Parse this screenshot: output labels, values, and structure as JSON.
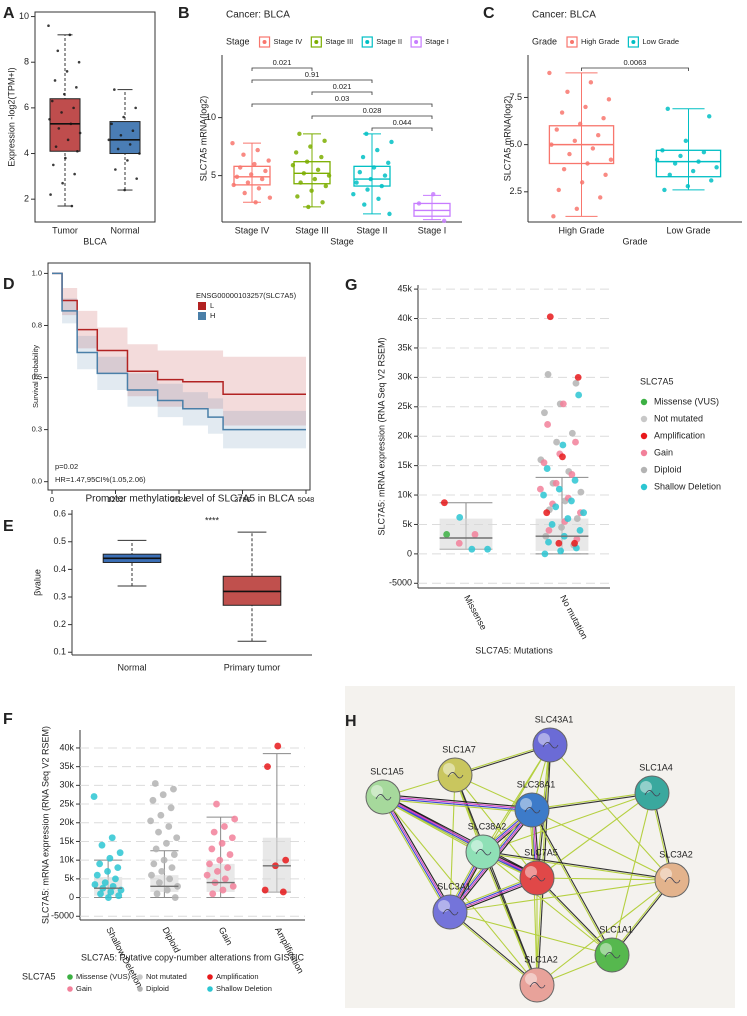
{
  "chart_data": [
    {
      "label": "A",
      "type": "box",
      "y_label": "Expression -log2(TPM+l)",
      "x_label": "BLCA",
      "categories": [
        "Tumor",
        "Normal"
      ],
      "boxes": [
        {
          "min": 1.7,
          "q1": 4.1,
          "median": 5.3,
          "q3": 6.4,
          "max": 9.2
        },
        {
          "min": 2.4,
          "q1": 4.0,
          "median": 4.6,
          "q3": 5.4,
          "max": 6.8
        }
      ],
      "colors": [
        "#bf4d4d",
        "#4a7db5"
      ],
      "point_color": "#1a1a1a",
      "box_style": "filled",
      "points": [
        [
          {
            "values": [
              9.6,
              9.2,
              8.5,
              8.0,
              7.6,
              7.2,
              6.9,
              6.6,
              6.3,
              6.0,
              5.8,
              5.5,
              5.3,
              5.1,
              4.9,
              4.6,
              4.3,
              4.1,
              3.8,
              3.5,
              3.1,
              2.7,
              2.2,
              1.7
            ]
          }
        ],
        [
          {
            "values": [
              6.8,
              6.0,
              5.6,
              5.3,
              5.0,
              4.8,
              4.6,
              4.4,
              4.2,
              4.0,
              3.7,
              3.3,
              2.9,
              2.4
            ]
          }
        ]
      ],
      "ylim": [
        1.0,
        10.2
      ],
      "yticks": [
        2,
        4,
        6,
        8,
        10
      ]
    },
    {
      "label": "B",
      "type": "box",
      "title": "Cancer: BLCA",
      "legend_title": "Stage",
      "y_label": "SLC7A5 mRNA(log2)",
      "x_label": "Stage",
      "categories": [
        "Stage IV",
        "Stage III",
        "Stage II",
        "Stage I"
      ],
      "boxes": [
        {
          "min": 2.7,
          "q1": 4.2,
          "median": 4.9,
          "q3": 5.8,
          "max": 7.8
        },
        {
          "min": 2.3,
          "q1": 4.3,
          "median": 5.2,
          "q3": 6.2,
          "max": 8.6
        },
        {
          "min": 1.7,
          "q1": 4.1,
          "median": 4.7,
          "q3": 5.8,
          "max": 8.6
        },
        {
          "min": 1.2,
          "q1": 1.5,
          "median": 2.0,
          "q3": 2.6,
          "max": 3.3
        }
      ],
      "colors": [
        "#F8766D",
        "#7CAE00",
        "#00BFC4",
        "#C77CFF"
      ],
      "box_style": "outline",
      "points": [
        [
          {
            "values": [
              7.8,
              7.2,
              6.8,
              6.3,
              6.0,
              5.7,
              5.4,
              5.1,
              4.9,
              4.7,
              4.4,
              4.2,
              3.9,
              3.5,
              3.1,
              2.7
            ]
          }
        ],
        [
          {
            "values": [
              8.6,
              8.0,
              7.5,
              7.0,
              6.6,
              6.2,
              5.9,
              5.5,
              5.2,
              5.0,
              4.7,
              4.4,
              4.1,
              3.7,
              3.2,
              2.7,
              2.3
            ]
          }
        ],
        [
          {
            "values": [
              8.6,
              7.9,
              7.2,
              6.6,
              6.1,
              5.7,
              5.3,
              5.0,
              4.7,
              4.4,
              4.1,
              3.8,
              3.4,
              3.0,
              2.5,
              1.7
            ]
          }
        ],
        [
          {
            "values": [
              3.4,
              2.6,
              1.1
            ]
          }
        ]
      ],
      "comparisons": [
        {
          "p": "0.021",
          "groups": [
            "Stage IV",
            "Stage III"
          ]
        },
        {
          "p": "0.91",
          "groups": [
            "Stage IV",
            "Stage II"
          ]
        },
        {
          "p": "0.021",
          "groups": [
            "Stage III",
            "Stage II"
          ]
        },
        {
          "p": "0.03",
          "groups": [
            "Stage IV",
            "Stage I"
          ]
        },
        {
          "p": "0.028",
          "groups": [
            "Stage III",
            "Stage I"
          ]
        },
        {
          "p": "0.044",
          "groups": [
            "Stage II",
            "Stage I"
          ]
        }
      ],
      "ylim": [
        1.0,
        15.4
      ],
      "yticks": [
        5,
        10
      ]
    },
    {
      "label": "C",
      "type": "box",
      "title": "Cancer: BLCA",
      "legend_title": "Grade",
      "y_label": "SLC7A5 mRNA(log2)",
      "x_label": "Grade",
      "categories": [
        "High Grade",
        "Low Grade"
      ],
      "boxes": [
        {
          "min": 1.2,
          "q1": 4.0,
          "median": 5.0,
          "q3": 6.0,
          "max": 8.8
        },
        {
          "min": 2.6,
          "q1": 3.3,
          "median": 4.1,
          "q3": 4.7,
          "max": 6.9
        }
      ],
      "colors": [
        "#F8766D",
        "#00BFC4"
      ],
      "box_style": "outline",
      "points": [
        [
          {
            "values": [
              8.8,
              8.3,
              7.8,
              7.4,
              7.0,
              6.7,
              6.4,
              6.1,
              5.8,
              5.5,
              5.2,
              5.0,
              4.8,
              4.5,
              4.2,
              4.0,
              3.7,
              3.4,
              3.0,
              2.6,
              2.2,
              1.6,
              1.2
            ]
          }
        ],
        [
          {
            "values": [
              6.9,
              6.5,
              5.2,
              4.7,
              4.6,
              4.4,
              4.2,
              4.1,
              4.0,
              3.8,
              3.6,
              3.4,
              3.1,
              2.8,
              2.6
            ]
          }
        ]
      ],
      "comparisons": [
        {
          "p": "0.0063",
          "groups": [
            "High Grade",
            "Low Grade"
          ]
        }
      ],
      "ylim": [
        0.9,
        9.75
      ],
      "yticks": [
        2.5,
        {
          "value": 5,
          "label": "5.0"
        },
        7.5
      ]
    },
    {
      "label": "D",
      "type": "step",
      "legend_title": "ENSG00000103257(SLC7A5)",
      "y_label": "Survival probability",
      "annotations": [
        "p=0.02",
        "HR=1.47,95CI%(1.05,2.06)"
      ],
      "x": [
        0,
        200,
        500,
        900,
        1500,
        2100,
        2600,
        3100,
        3400,
        5048
      ],
      "series": [
        {
          "name": "L",
          "color": "#b22222",
          "values": [
            1,
            0.87,
            0.73,
            0.63,
            0.53,
            0.49,
            0.48,
            0.48,
            0.42,
            0.42
          ],
          "lower": [
            1,
            0.8,
            0.64,
            0.52,
            0.41,
            0.36,
            0.35,
            0.35,
            0.27,
            0.27
          ],
          "upper": [
            1,
            0.93,
            0.82,
            0.74,
            0.66,
            0.63,
            0.63,
            0.63,
            0.6,
            0.6
          ]
        },
        {
          "name": "H",
          "color": "#4a7fa8",
          "values": [
            1,
            0.82,
            0.62,
            0.52,
            0.44,
            0.39,
            0.35,
            0.31,
            0.25,
            0.25
          ],
          "lower": [
            1,
            0.76,
            0.54,
            0.44,
            0.36,
            0.31,
            0.27,
            0.23,
            0.16,
            0.16
          ],
          "upper": [
            1,
            0.88,
            0.7,
            0.6,
            0.52,
            0.47,
            0.43,
            0.4,
            0.34,
            0.34
          ]
        }
      ],
      "xlim": [
        0,
        5048
      ],
      "xticks": [
        0,
        1262,
        2524,
        3786,
        5048
      ],
      "ylim": [
        -0.04,
        1.05
      ],
      "yticks": [
        {
          "value": 0,
          "label": "0.0"
        },
        {
          "value": 0.25,
          "label": "0.3"
        },
        0.5,
        {
          "value": 0.75,
          "label": "0.8"
        },
        {
          "value": 1,
          "label": "1.0"
        }
      ]
    },
    {
      "label": "E",
      "type": "box",
      "title": "Promoter methylation level of SLC7A5 in BLCA",
      "y_label": "βvalue",
      "annotations": [
        "****"
      ],
      "categories": [
        "Normal",
        "Primary tumor"
      ],
      "boxes": [
        {
          "min": 0.34,
          "q1": 0.425,
          "median": 0.44,
          "q3": 0.455,
          "max": 0.505
        },
        {
          "min": 0.14,
          "q1": 0.27,
          "median": 0.32,
          "q3": 0.375,
          "max": 0.535
        }
      ],
      "colors": [
        "#3b6fb6",
        "#c0504d"
      ],
      "box_style": "filled",
      "ylim": [
        0.09,
        0.615
      ],
      "yticks": [
        0.1,
        0.2,
        0.3,
        0.4,
        0.5,
        0.6
      ]
    },
    {
      "label": "F",
      "type": "box",
      "y_label": "SLC7A5: mRNA expression (RNA Seq V2 RSEM)",
      "x_label": "SLC7A5: Putative copy-number alterations from GISTIC",
      "legend_title": "SLC7A5",
      "series": [
        {
          "name": "Missense (VUS)",
          "color": "#3cb043"
        },
        {
          "name": "Not mutated",
          "color": "#c8c8c8"
        },
        {
          "name": "Amplification",
          "color": "#e8191b"
        },
        {
          "name": "Gain",
          "color": "#f2809a"
        },
        {
          "name": "Diploid",
          "color": "#b3b3b3"
        },
        {
          "name": "Shallow Deletion",
          "color": "#2cc6d2"
        }
      ],
      "categories": [
        "Shallow Deletion",
        "Diploid",
        "Gain",
        "Amplification"
      ],
      "boxes": [
        {
          "min": 0,
          "q1": 500,
          "median": 2500,
          "q3": 5500,
          "max": 10000
        },
        {
          "min": 0,
          "q1": 1500,
          "median": 3000,
          "q3": 6000,
          "max": 12500
        },
        {
          "min": 0,
          "q1": 1500,
          "median": 4000,
          "q3": 9000,
          "max": 21500
        },
        {
          "min": 1500,
          "q1": 1500,
          "median": 8500,
          "q3": 16000,
          "max": 38500
        }
      ],
      "box_style": "grey",
      "grid": true,
      "points": [
        [
          {
            "group": "Shallow Deletion",
            "values": [
              27000,
              16000,
              14000,
              12000,
              10500,
              9000,
              8000,
              7000,
              6000,
              5000,
              4000,
              3500,
              3000,
              2500,
              2000,
              1500,
              1000,
              500,
              0
            ]
          }
        ],
        [
          {
            "group": "Diploid",
            "values": [
              30500,
              29000,
              27500,
              26000,
              24000,
              22000,
              20500,
              19000,
              17500,
              16000,
              14500,
              13000,
              11500,
              10000,
              9000,
              8000,
              7000,
              6000,
              5000,
              4000,
              3000,
              2000,
              1000,
              0
            ]
          }
        ],
        [
          {
            "group": "Gain",
            "values": [
              25000,
              21000,
              19000,
              17500,
              16000,
              14500,
              13000,
              11500,
              10000,
              9000,
              8000,
              7000,
              6000,
              5000,
              4000,
              3000,
              2000,
              1000
            ]
          }
        ],
        [
          {
            "group": "Amplification",
            "values": [
              40500,
              35000,
              10000,
              8500,
              2000,
              1500
            ]
          }
        ]
      ],
      "ylim": [
        -6000,
        44800
      ],
      "yticks": [
        -5000,
        0,
        {
          "value": 5000,
          "label": "5k"
        },
        {
          "value": 10000,
          "label": "10k"
        },
        {
          "value": 15000,
          "label": "15k"
        },
        {
          "value": 20000,
          "label": "20k"
        },
        {
          "value": 25000,
          "label": "25k"
        },
        {
          "value": 30000,
          "label": "30k"
        },
        {
          "value": 35000,
          "label": "35k"
        },
        {
          "value": 40000,
          "label": "40k"
        }
      ]
    },
    {
      "label": "G",
      "type": "box",
      "y_label": "SLC7A5: mRNA expression (RNA Seq V2 RSEM)",
      "x_label": "SLC7A5: Mutations",
      "legend_title": "SLC7A5",
      "series": [
        {
          "name": "Missense (VUS)",
          "color": "#3cb043"
        },
        {
          "name": "Not mutated",
          "color": "#c8c8c8"
        },
        {
          "name": "Amplification",
          "color": "#e8191b"
        },
        {
          "name": "Gain",
          "color": "#f2809a"
        },
        {
          "name": "Diploid",
          "color": "#b3b3b3"
        },
        {
          "name": "Shallow Deletion",
          "color": "#2cc6d2"
        }
      ],
      "categories": [
        "Missense",
        "No mutation"
      ],
      "boxes": [
        {
          "min": 800,
          "q1": 800,
          "median": 2700,
          "q3": 6000,
          "max": 8700
        },
        {
          "min": 0,
          "q1": 500,
          "median": 3000,
          "q3": 6000,
          "max": 13000
        }
      ],
      "box_style": "grey",
      "grid": true,
      "points": [
        [
          {
            "group": "Amplification",
            "values": [
              8700
            ]
          },
          {
            "group": "Shallow Deletion",
            "values": [
              6200,
              800,
              800
            ]
          },
          {
            "group": "Gain",
            "values": [
              3300,
              1800
            ]
          },
          {
            "group": "Missense (VUS)",
            "values": [
              3300
            ]
          }
        ],
        [
          {
            "group": "Diploid",
            "values": [
              30500,
              29000,
              25500,
              24000,
              20500,
              19000,
              16000,
              14000,
              12000,
              10500,
              9000,
              7500,
              6000,
              4500,
              3000,
              1500
            ]
          },
          {
            "group": "Gain",
            "values": [
              25500,
              22000,
              19000,
              17000,
              15500,
              13500,
              12000,
              11000,
              9500,
              8500,
              7000,
              5500,
              4000,
              2500
            ]
          },
          {
            "group": "Shallow Deletion",
            "values": [
              27000,
              18500,
              14500,
              12500,
              11000,
              10000,
              9000,
              8000,
              7000,
              6000,
              5000,
              4000,
              3000,
              2000,
              1000,
              500,
              0
            ]
          },
          {
            "group": "Amplification",
            "values": [
              40300,
              30000,
              16500,
              7000,
              1800,
              1800
            ]
          }
        ]
      ],
      "ylim": [
        -5800,
        45700
      ],
      "yticks": [
        -5000,
        0,
        {
          "value": 5000,
          "label": "5k"
        },
        {
          "value": 10000,
          "label": "10k"
        },
        {
          "value": 15000,
          "label": "15k"
        },
        {
          "value": 20000,
          "label": "20k"
        },
        {
          "value": 25000,
          "label": "25k"
        },
        {
          "value": 30000,
          "label": "30k"
        },
        {
          "value": 35000,
          "label": "35k"
        },
        {
          "value": 40000,
          "label": "40k"
        },
        {
          "value": 45000,
          "label": "45k"
        }
      ]
    }
  ],
  "network": {
    "label": "H",
    "nodes": [
      "SLC43A1",
      "SLC1A7",
      "SLC1A5",
      "SLC1A4",
      "SLC38A1",
      "SLC38A2",
      "SLC7A5",
      "SLC3A2",
      "SLC3A1",
      "SLC1A1",
      "SLC1A2"
    ]
  }
}
